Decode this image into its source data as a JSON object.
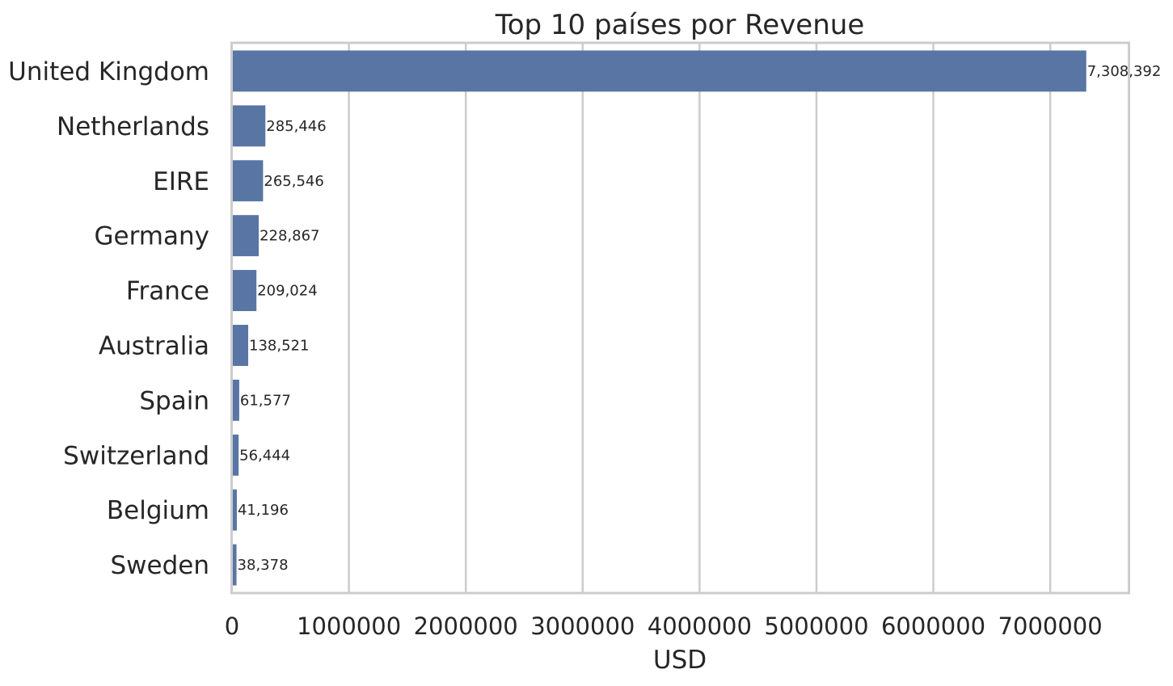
{
  "chart_data": {
    "type": "bar",
    "orientation": "horizontal",
    "title": "Top 10 países por Revenue",
    "xlabel": "USD",
    "ylabel": "",
    "categories": [
      "United Kingdom",
      "Netherlands",
      "EIRE",
      "Germany",
      "France",
      "Australia",
      "Spain",
      "Switzerland",
      "Belgium",
      "Sweden"
    ],
    "values": [
      7308392,
      285446,
      265546,
      228867,
      209024,
      138521,
      61577,
      56444,
      41196,
      38378
    ],
    "data_labels": [
      "7,308,392",
      "285,446",
      "265,546",
      "228,867",
      "209,024",
      "138,521",
      "61,577",
      "56,444",
      "41,196",
      "38,378"
    ],
    "xlim": [
      0,
      7670000
    ],
    "xticks": [
      0,
      1000000,
      2000000,
      3000000,
      4000000,
      5000000,
      6000000,
      7000000
    ],
    "xtick_labels": [
      "0",
      "1000000",
      "2000000",
      "3000000",
      "4000000",
      "5000000",
      "6000000",
      "7000000"
    ],
    "grid": "vertical",
    "bar_color": "#5875a4",
    "grid_color": "#cccccc",
    "text_color": "#262626"
  }
}
